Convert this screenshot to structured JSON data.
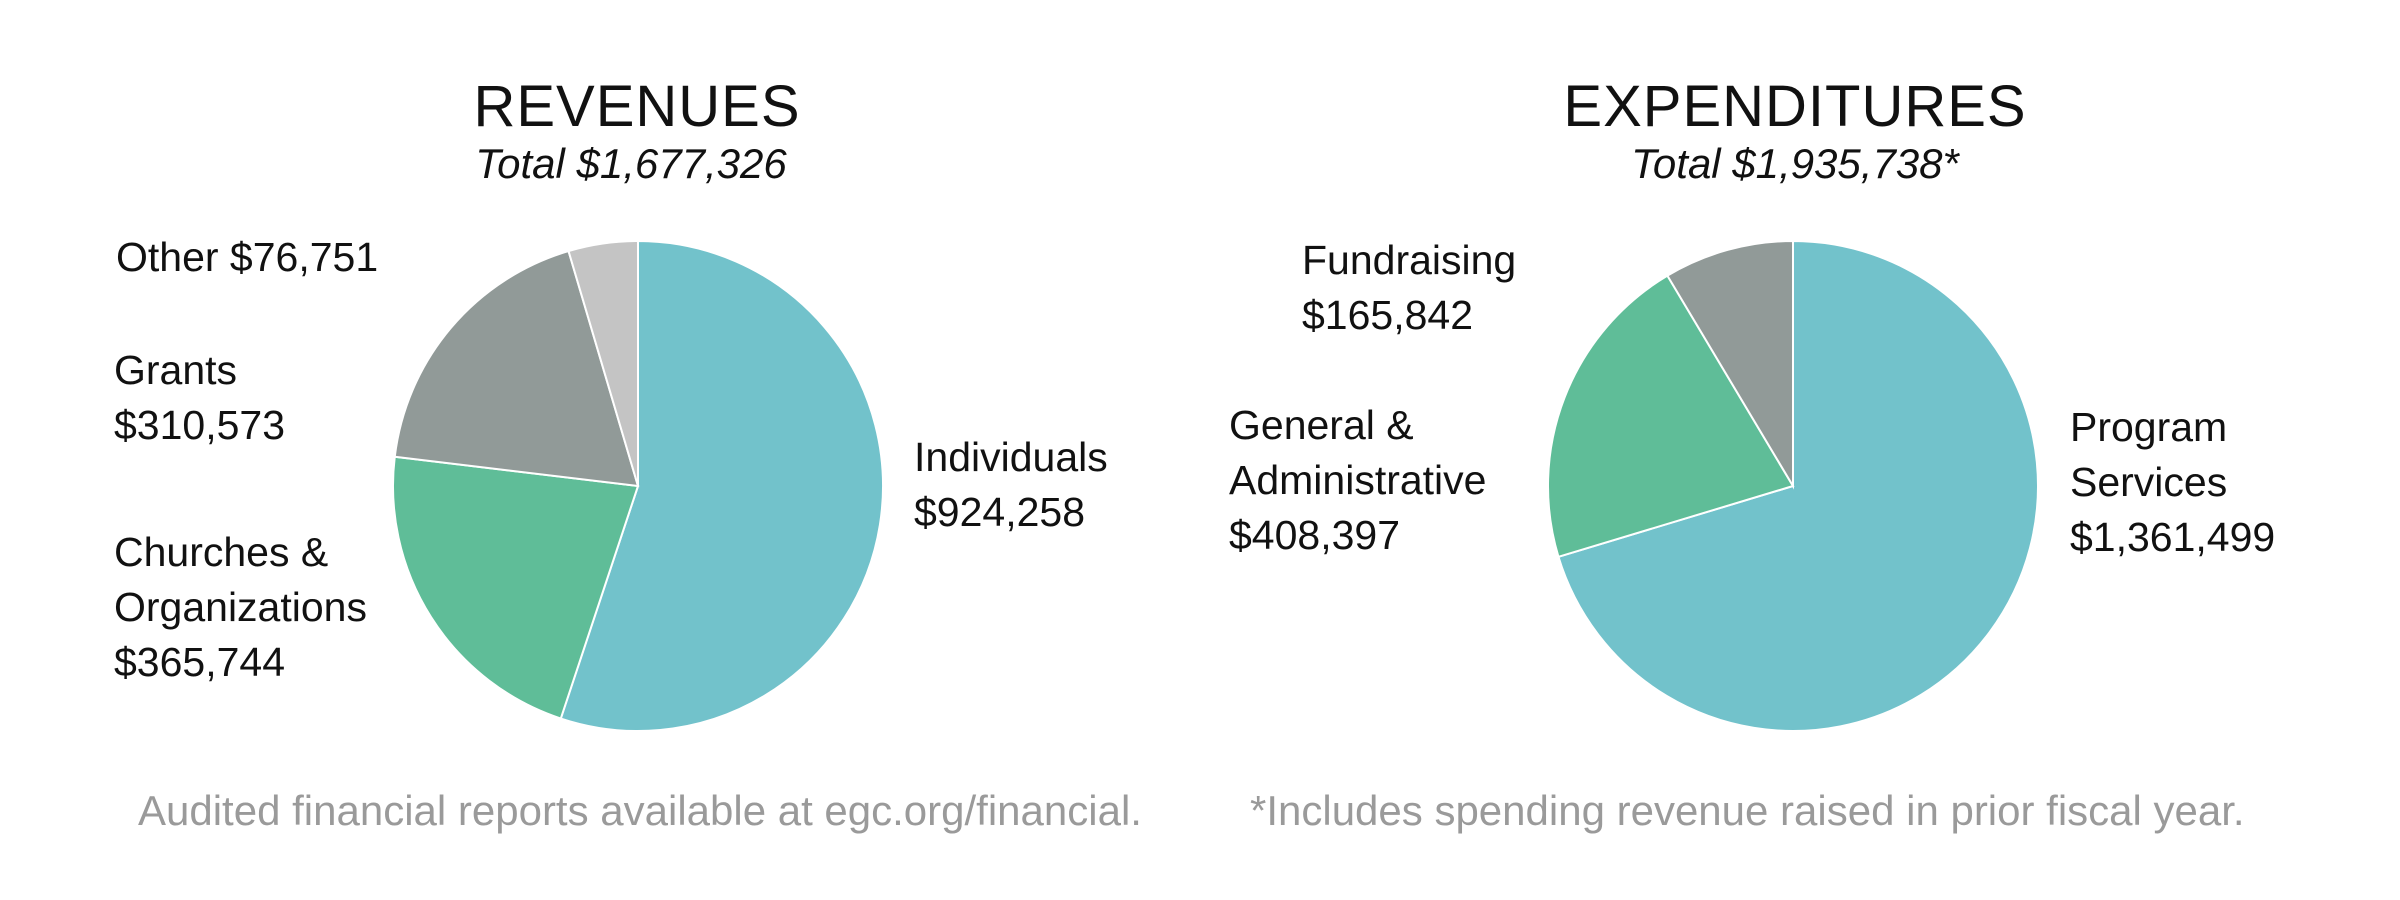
{
  "chart_data": [
    {
      "type": "pie",
      "title": "REVENUES",
      "subtitle": "Total $1,677,326",
      "slices": [
        {
          "label": [
            "Individuals",
            "$924,258"
          ],
          "value": 924258,
          "color": "#72c2cb"
        },
        {
          "label": [
            "Churches &",
            "Organizations",
            "$365,744"
          ],
          "value": 365744,
          "color": "#5fbd98"
        },
        {
          "label": [
            "Grants",
            "$310,573"
          ],
          "value": 310573,
          "color": "#919a98"
        },
        {
          "label": [
            "Other $76,751"
          ],
          "value": 76751,
          "color": "#c4c4c4"
        }
      ]
    },
    {
      "type": "pie",
      "title": "EXPENDITURES",
      "subtitle": "Total $1,935,738*",
      "slices": [
        {
          "label": [
            "Program",
            "Services",
            "$1,361,499"
          ],
          "value": 1361499,
          "color": "#72c2cb"
        },
        {
          "label": [
            "General &",
            "Administrative",
            "$408,397"
          ],
          "value": 408397,
          "color": "#5fbd98"
        },
        {
          "label": [
            "Fundraising",
            "$165,842"
          ],
          "value": 165842,
          "color": "#919a98"
        }
      ]
    }
  ],
  "footnotes": {
    "left": "Audited financial reports available at egc.org/financial.",
    "right": "*Includes spending revenue raised in prior fiscal year."
  }
}
